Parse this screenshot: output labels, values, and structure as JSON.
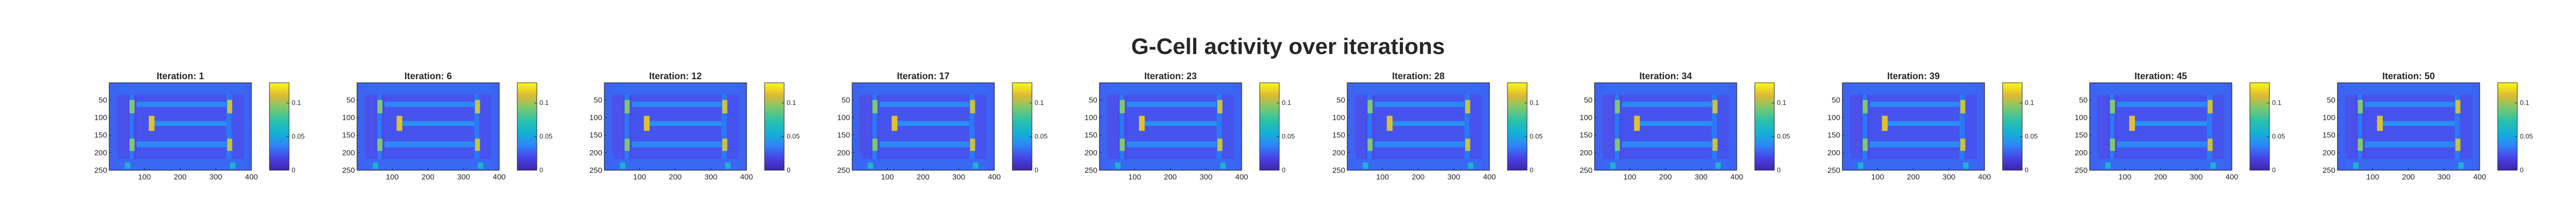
{
  "figure": {
    "title": "G-Cell activity over iterations"
  },
  "chart_data": {
    "type": "heatmap",
    "title": "G-Cell activity over iterations",
    "colormap": "parula",
    "colormap_stops": [
      "#3e26a8",
      "#4743e8",
      "#2e86f6",
      "#12b1d6",
      "#2cc2a7",
      "#7ac96f",
      "#e0b934",
      "#f9fb15"
    ],
    "xlim": [
      1,
      400
    ],
    "ylim": [
      1,
      250
    ],
    "x_ticks": [
      100,
      200,
      300,
      400
    ],
    "y_ticks": [
      50,
      100,
      150,
      200,
      250
    ],
    "colorbar": {
      "range": [
        0,
        0.13
      ],
      "ticks": [
        "0",
        "0.05",
        "0.1"
      ],
      "tick_values": [
        0,
        0.05,
        0.1
      ]
    },
    "panels": [
      {
        "title": "Iteration: 1",
        "iteration": 1
      },
      {
        "title": "Iteration: 6",
        "iteration": 6
      },
      {
        "title": "Iteration: 12",
        "iteration": 12
      },
      {
        "title": "Iteration: 17",
        "iteration": 17
      },
      {
        "title": "Iteration: 23",
        "iteration": 23
      },
      {
        "title": "Iteration: 28",
        "iteration": 28
      },
      {
        "title": "Iteration: 34",
        "iteration": 34
      },
      {
        "title": "Iteration: 39",
        "iteration": 39
      },
      {
        "title": "Iteration: 45",
        "iteration": 45
      },
      {
        "title": "Iteration: 50",
        "iteration": 50
      }
    ]
  }
}
